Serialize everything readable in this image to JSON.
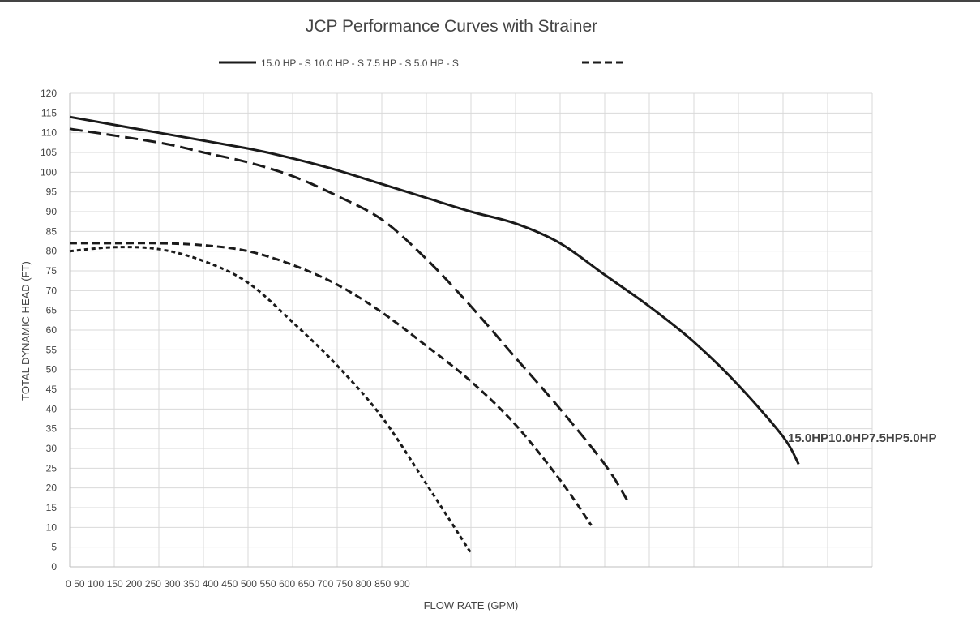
{
  "chart_data": {
    "type": "line",
    "title": "JCP Performance Curves with Strainer",
    "xlabel": "FLOW RATE  (GPM)",
    "ylabel": "TOTAL DYNAMIC HEAD (FT)",
    "xlim": [
      0,
      1800
    ],
    "ylim": [
      0,
      120
    ],
    "x_tick_labels": [
      "0",
      "50",
      "100",
      "150",
      "200",
      "250",
      "300",
      "350",
      "400",
      "450",
      "500",
      "550",
      "600",
      "650",
      "700",
      "750",
      "800",
      "850",
      "900"
    ],
    "y_ticks": [
      0,
      5,
      10,
      15,
      20,
      25,
      30,
      35,
      40,
      45,
      50,
      55,
      60,
      65,
      70,
      75,
      80,
      85,
      90,
      95,
      100,
      105,
      110,
      115,
      120
    ],
    "grid": true,
    "legend_text": "15.0 HP - S 10.0 HP - S 7.5 HP - S 5.0 HP - S",
    "legend_placement": "top",
    "end_label": "15.0HP10.0HP7.5HP5.0HP",
    "series": [
      {
        "name": "15.0 HP - S",
        "dash": "solid",
        "x": [
          0,
          200,
          400,
          500,
          600,
          700,
          800,
          900,
          1000,
          1100,
          1200,
          1300,
          1400,
          1500,
          1600,
          1635
        ],
        "y": [
          114,
          110,
          106,
          103.5,
          100.5,
          97,
          93.5,
          90,
          87,
          82,
          74,
          66,
          57,
          46,
          33,
          26
        ]
      },
      {
        "name": "10.0 HP - S",
        "dash": "long",
        "x": [
          0,
          200,
          300,
          400,
          500,
          600,
          700,
          800,
          900,
          1000,
          1100,
          1200,
          1250
        ],
        "y": [
          111,
          107.5,
          105,
          102.5,
          99,
          94,
          88,
          78,
          66,
          53,
          40,
          26,
          17
        ]
      },
      {
        "name": "7.5 HP - S",
        "dash": "medium",
        "x": [
          0,
          100,
          200,
          300,
          400,
          500,
          600,
          700,
          800,
          900,
          1000,
          1100,
          1170
        ],
        "y": [
          82,
          82,
          82,
          81.5,
          80,
          76.5,
          71.5,
          64.5,
          56,
          47,
          36,
          22,
          10.5
        ]
      },
      {
        "name": "5.0 HP - S",
        "dash": "short",
        "x": [
          0,
          100,
          200,
          300,
          400,
          500,
          600,
          700,
          800,
          900
        ],
        "y": [
          80,
          81,
          80.5,
          77.5,
          72,
          62,
          51,
          38,
          21,
          3.5
        ]
      }
    ]
  }
}
